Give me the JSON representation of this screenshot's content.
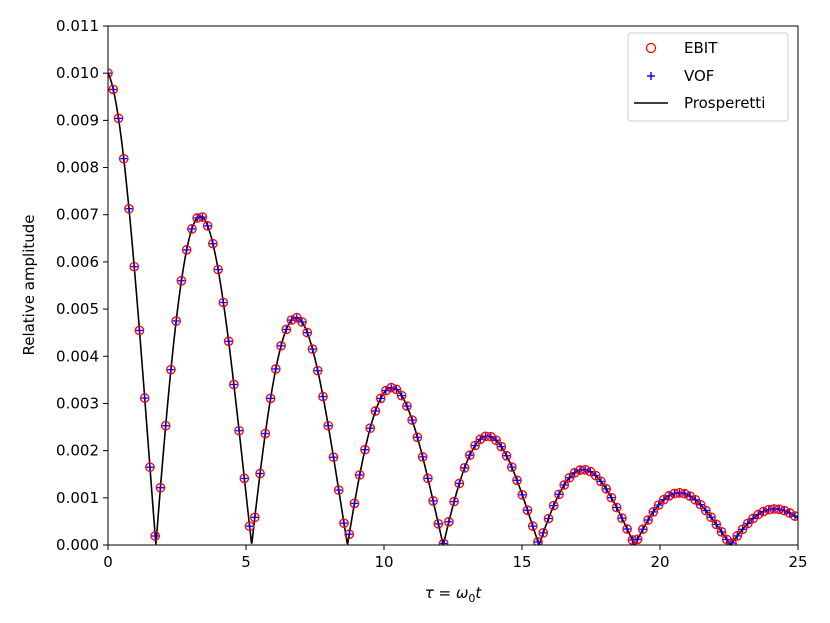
{
  "chart_data": {
    "type": "line",
    "xlabel_parts": {
      "tau": "τ",
      "eq": " = ",
      "omega": "ω",
      "sub": "0",
      "t": "t"
    },
    "ylabel": "Relative amplitude",
    "xlim": [
      0,
      25
    ],
    "ylim": [
      0,
      0.011
    ],
    "x_ticks": [
      0,
      5,
      10,
      15,
      20,
      25
    ],
    "x_tick_labels": [
      "0",
      "5",
      "10",
      "15",
      "20",
      "25"
    ],
    "y_ticks": [
      0,
      0.001,
      0.002,
      0.003,
      0.004,
      0.005,
      0.006,
      0.007,
      0.008,
      0.009,
      0.01,
      0.011
    ],
    "y_tick_labels": [
      "0.000",
      "0.001",
      "0.002",
      "0.003",
      "0.004",
      "0.005",
      "0.006",
      "0.007",
      "0.008",
      "0.009",
      "0.010",
      "0.011"
    ],
    "grid": false,
    "legend_position": "top-right",
    "series": [
      {
        "name": "EBIT",
        "kind": "marker-circle-open",
        "color": "#ff0000"
      },
      {
        "name": "VOF",
        "kind": "marker-plus",
        "color": "#0000ff"
      },
      {
        "name": "Prosperetti",
        "kind": "line",
        "color": "#000000"
      }
    ],
    "model": {
      "description_of_curve": "damped |cos| oscillation",
      "a0": 0.01,
      "decay_rate": 0.1061,
      "frequency": 0.9052,
      "x_start": 0,
      "x_end": 25,
      "marker_dx": 0.19
    }
  }
}
